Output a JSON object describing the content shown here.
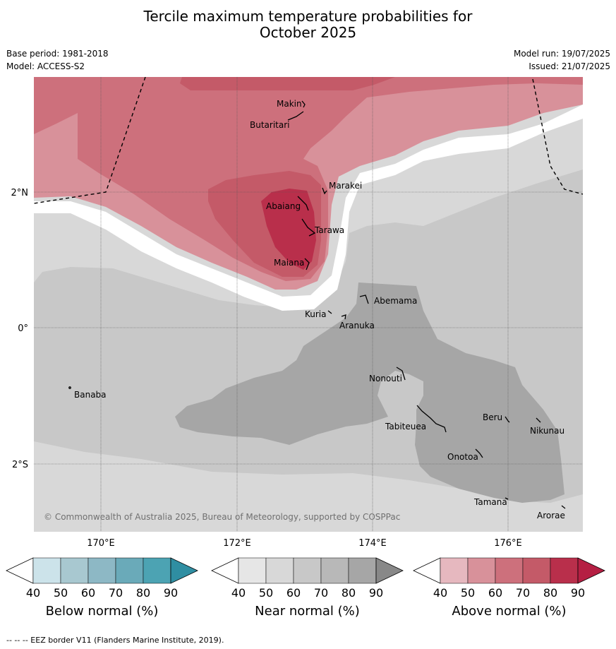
{
  "title_line1": "Tercile maximum temperature probabilities for",
  "title_line2": "October 2025",
  "base_period": "Base period: 1981-2018",
  "model": "Model: ACCESS-S2",
  "model_run": "Model run: 19/07/2025",
  "issued": "Issued: 21/07/2025",
  "copyright": "© Commonwealth of Australia 2025, Bureau of Meteorology, supported by COSPPac",
  "eez_note": "--  --  -- EEZ border V11 (Flanders Marine Institute, 2019).",
  "map": {
    "lon_labels": [
      "170°E",
      "172°E",
      "174°E",
      "176°E"
    ],
    "lat_labels": [
      "2°N",
      "0°",
      "2°S"
    ],
    "places": [
      "Makin",
      "Butaritari",
      "Marakei",
      "Abaiang",
      "Tarawa",
      "Maiana",
      "Abemama",
      "Kuria",
      "Aranuka",
      "Nonouti",
      "Banaba",
      "Beru",
      "Nikunau",
      "Tabiteuea",
      "Onotoa",
      "Tamana",
      "Arorae"
    ]
  },
  "colorbars": [
    {
      "name": "below",
      "title": "Below normal (%)",
      "ticks": [
        "40",
        "50",
        "60",
        "70",
        "80",
        "90"
      ],
      "colors": [
        "#ffffff",
        "#cce3ea",
        "#a8c8d0",
        "#8db8c5",
        "#6aaab9",
        "#4ca3b3",
        "#2f8ea2"
      ]
    },
    {
      "name": "near",
      "title": "Near normal (%)",
      "ticks": [
        "40",
        "50",
        "60",
        "70",
        "80",
        "90"
      ],
      "colors": [
        "#ffffff",
        "#e6e6e6",
        "#d8d8d8",
        "#c8c8c8",
        "#b8b8b8",
        "#a6a6a6",
        "#888888"
      ]
    },
    {
      "name": "above",
      "title": "Above normal (%)",
      "ticks": [
        "40",
        "50",
        "60",
        "70",
        "80",
        "90"
      ],
      "colors": [
        "#ffffff",
        "#e6b8bf",
        "#d8919a",
        "#cd707c",
        "#c45a68",
        "#b92f4b",
        "#b51f43"
      ]
    }
  ]
}
